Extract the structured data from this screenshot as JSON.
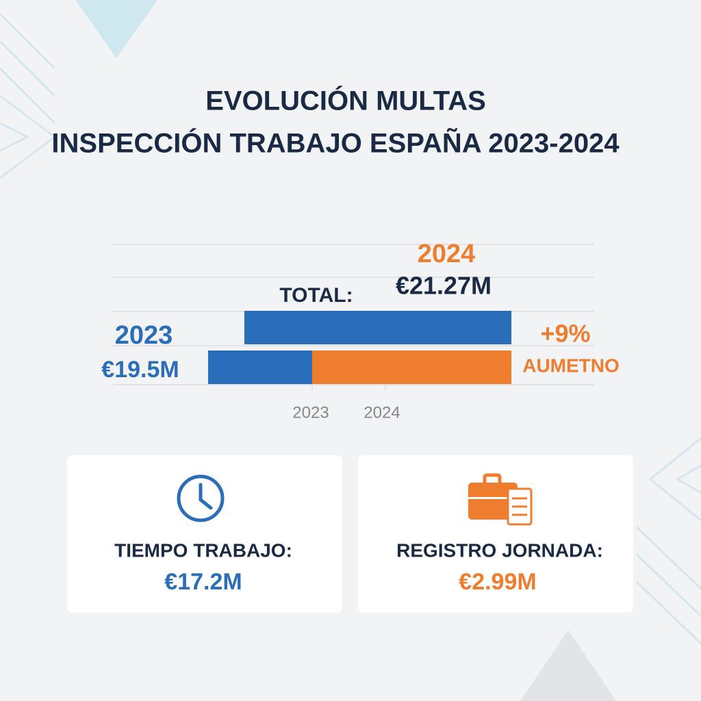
{
  "header": {
    "title_line1": "EVOLUCIÓN MULTAS",
    "title_line2": "INSPECCIÓN TRABAJO ESPAÑA 2023-2024"
  },
  "comparison": {
    "year_2024": {
      "label": "2024",
      "amount": "€21.27M"
    },
    "total_label": "TOTAL:",
    "year_2023": {
      "label": "2023",
      "amount": "€19.5M"
    },
    "change": {
      "value": "+9%",
      "label": "AUMETNO"
    },
    "axis_labels": [
      "2023",
      "2024"
    ]
  },
  "cards": [
    {
      "label": "TIEMPO TRABAJO:",
      "amount": "€17.2M"
    },
    {
      "label": "REGISTRO JORNADA:",
      "amount": "€2.99M"
    }
  ]
}
